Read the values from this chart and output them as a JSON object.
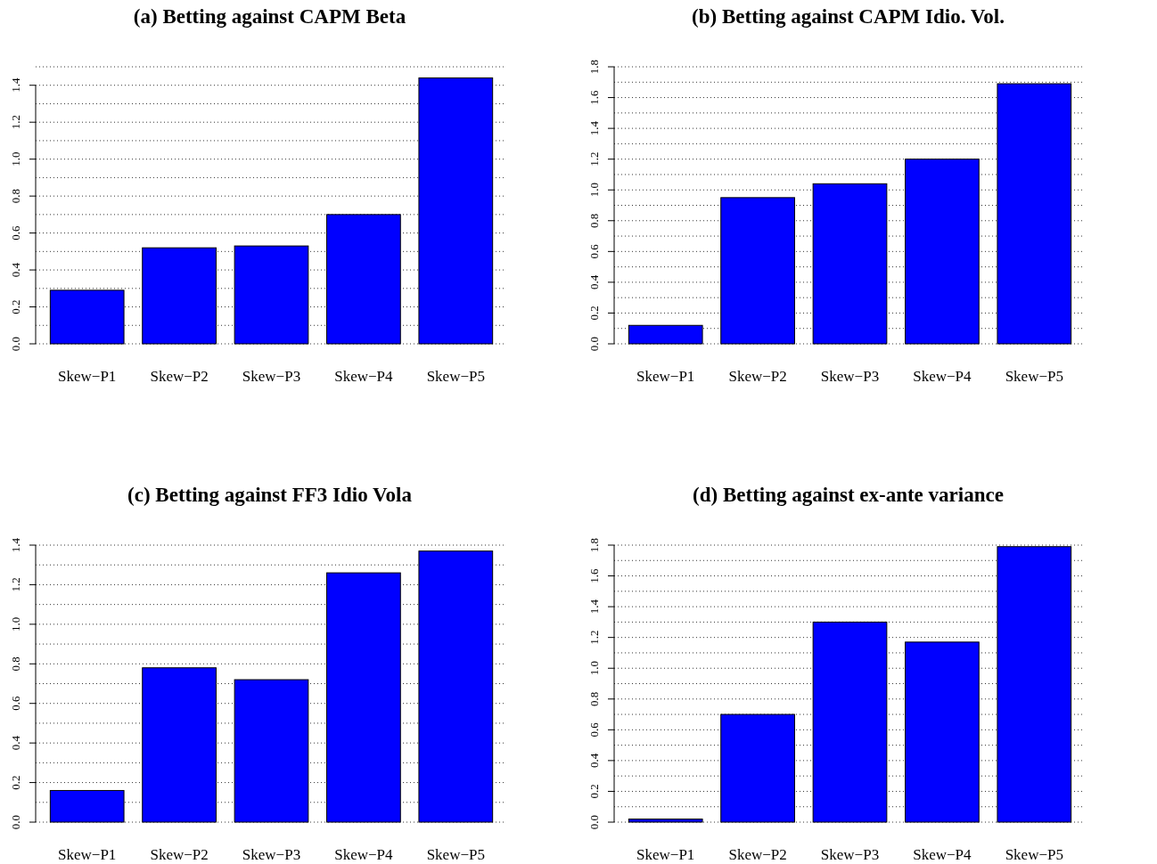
{
  "chart_data": [
    {
      "type": "bar",
      "title": "(a) Betting against CAPM Beta",
      "categories": [
        "Skew−P1",
        "Skew−P2",
        "Skew−P3",
        "Skew−P4",
        "Skew−P5"
      ],
      "values": [
        0.29,
        0.52,
        0.53,
        0.7,
        1.44
      ],
      "color": "#0000ff",
      "ylim": [
        0,
        1.5
      ],
      "yticks": [
        {
          "value": 0,
          "label": "0.0"
        },
        {
          "value": 0.1,
          "label": null
        },
        {
          "value": 0.2,
          "label": "0.2"
        },
        {
          "value": 0.3,
          "label": null
        },
        {
          "value": 0.4,
          "label": "0.4"
        },
        {
          "value": 0.5,
          "label": null
        },
        {
          "value": 0.6,
          "label": "0.6"
        },
        {
          "value": 0.7,
          "label": null
        },
        {
          "value": 0.8,
          "label": "0.8"
        },
        {
          "value": 0.9,
          "label": null
        },
        {
          "value": 1,
          "label": "1.0"
        },
        {
          "value": 1.1,
          "label": null
        },
        {
          "value": 1.2,
          "label": "1.2"
        },
        {
          "value": 1.3,
          "label": null
        },
        {
          "value": 1.4,
          "label": "1.4"
        },
        {
          "value": 1.5,
          "label": null
        }
      ],
      "grid": "y"
    },
    {
      "type": "bar",
      "title": "(b) Betting against CAPM Idio. Vol.",
      "categories": [
        "Skew−P1",
        "Skew−P2",
        "Skew−P3",
        "Skew−P4",
        "Skew−P5"
      ],
      "values": [
        0.12,
        0.95,
        1.04,
        1.2,
        1.69
      ],
      "color": "#0000ff",
      "ylim": [
        0,
        1.8
      ],
      "yticks": [
        {
          "value": 0,
          "label": "0.0"
        },
        {
          "value": 0.1,
          "label": null
        },
        {
          "value": 0.2,
          "label": "0.2"
        },
        {
          "value": 0.3,
          "label": null
        },
        {
          "value": 0.4,
          "label": "0.4"
        },
        {
          "value": 0.5,
          "label": null
        },
        {
          "value": 0.6,
          "label": "0.6"
        },
        {
          "value": 0.7,
          "label": null
        },
        {
          "value": 0.8,
          "label": "0.8"
        },
        {
          "value": 0.9,
          "label": null
        },
        {
          "value": 1,
          "label": "1.0"
        },
        {
          "value": 1.1,
          "label": null
        },
        {
          "value": 1.2,
          "label": "1.2"
        },
        {
          "value": 1.3,
          "label": null
        },
        {
          "value": 1.4,
          "label": "1.4"
        },
        {
          "value": 1.5,
          "label": null
        },
        {
          "value": 1.6,
          "label": "1.6"
        },
        {
          "value": 1.7,
          "label": null
        },
        {
          "value": 1.8,
          "label": "1.8"
        }
      ],
      "grid": "y"
    },
    {
      "type": "bar",
      "title": "(c) Betting against FF3 Idio Vola",
      "categories": [
        "Skew−P1",
        "Skew−P2",
        "Skew−P3",
        "Skew−P4",
        "Skew−P5"
      ],
      "values": [
        0.16,
        0.78,
        0.72,
        1.26,
        1.37
      ],
      "color": "#0000ff",
      "ylim": [
        0,
        1.4
      ],
      "yticks": [
        {
          "value": 0,
          "label": "0.0"
        },
        {
          "value": 0.1,
          "label": null
        },
        {
          "value": 0.2,
          "label": "0.2"
        },
        {
          "value": 0.3,
          "label": null
        },
        {
          "value": 0.4,
          "label": "0.4"
        },
        {
          "value": 0.5,
          "label": null
        },
        {
          "value": 0.6,
          "label": "0.6"
        },
        {
          "value": 0.7,
          "label": null
        },
        {
          "value": 0.8,
          "label": "0.8"
        },
        {
          "value": 0.9,
          "label": null
        },
        {
          "value": 1,
          "label": "1.0"
        },
        {
          "value": 1.1,
          "label": null
        },
        {
          "value": 1.2,
          "label": "1.2"
        },
        {
          "value": 1.3,
          "label": null
        },
        {
          "value": 1.4,
          "label": "1.4"
        }
      ],
      "grid": "y"
    },
    {
      "type": "bar",
      "title": "(d) Betting against ex-ante variance",
      "categories": [
        "Skew−P1",
        "Skew−P2",
        "Skew−P3",
        "Skew−P4",
        "Skew−P5"
      ],
      "values": [
        0.02,
        0.7,
        1.3,
        1.17,
        1.79
      ],
      "color": "#0000ff",
      "ylim": [
        0,
        1.8
      ],
      "yticks": [
        {
          "value": 0,
          "label": "0.0"
        },
        {
          "value": 0.1,
          "label": null
        },
        {
          "value": 0.2,
          "label": "0.2"
        },
        {
          "value": 0.3,
          "label": null
        },
        {
          "value": 0.4,
          "label": "0.4"
        },
        {
          "value": 0.5,
          "label": null
        },
        {
          "value": 0.6,
          "label": "0.6"
        },
        {
          "value": 0.7,
          "label": null
        },
        {
          "value": 0.8,
          "label": "0.8"
        },
        {
          "value": 0.9,
          "label": null
        },
        {
          "value": 1,
          "label": "1.0"
        },
        {
          "value": 1.1,
          "label": null
        },
        {
          "value": 1.2,
          "label": "1.2"
        },
        {
          "value": 1.3,
          "label": null
        },
        {
          "value": 1.4,
          "label": "1.4"
        },
        {
          "value": 1.5,
          "label": null
        },
        {
          "value": 1.6,
          "label": "1.6"
        },
        {
          "value": 1.7,
          "label": null
        },
        {
          "value": 1.8,
          "label": "1.8"
        }
      ],
      "grid": "y"
    }
  ]
}
